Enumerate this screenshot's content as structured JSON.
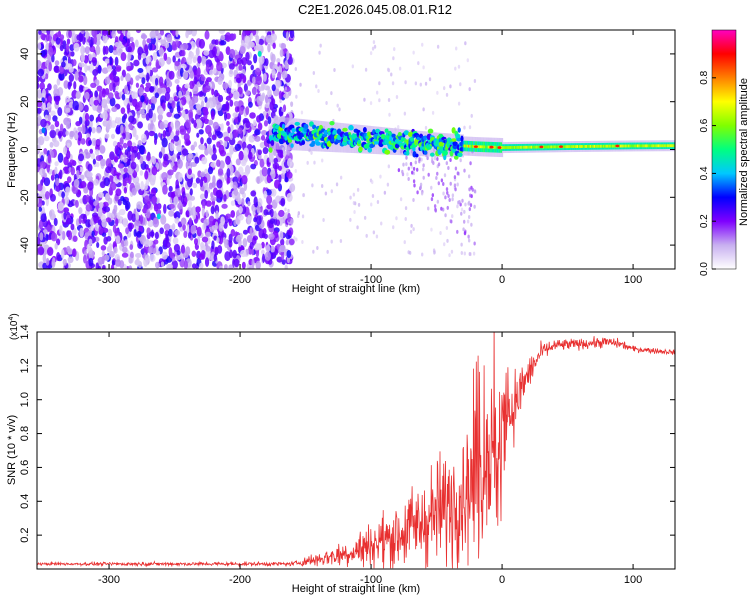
{
  "title": "C2E1.2026.045.08.01.R12",
  "chart_data": [
    {
      "type": "heatmap",
      "xlabel": "Height of straight line (km)",
      "ylabel": "Frequency (Hz)",
      "xlim": [
        -355,
        132
      ],
      "ylim": [
        -50,
        50
      ],
      "xticks": [
        -300,
        -200,
        -100,
        0,
        100
      ],
      "xtick_labels": [
        "-300",
        "-200",
        "-100",
        "0",
        "100"
      ],
      "yticks": [
        -40,
        -20,
        0,
        20,
        40
      ],
      "ytick_labels": [
        "-40",
        "-20",
        "0",
        "20",
        "40"
      ],
      "colorbar": {
        "label": "Normalized spectral amplitude",
        "range": [
          0,
          1
        ],
        "ticks": [
          0.0,
          0.2,
          0.4,
          0.6,
          0.8
        ],
        "tick_labels": [
          "0.0",
          "0.2",
          "0.4",
          "0.6",
          "0.8"
        ],
        "stops": [
          "#ffffff",
          "#c8b0f0",
          "#7f00ff",
          "#0000ff",
          "#00c8ff",
          "#00ff80",
          "#80ff00",
          "#ffff00",
          "#ff8000",
          "#ff0000",
          "#ff00c0"
        ]
      },
      "trace": {
        "x": [
          -175,
          -150,
          -125,
          -100,
          -75,
          -50,
          -30,
          -20,
          0,
          50,
          100,
          132
        ],
        "freq_hz": [
          7,
          6,
          5,
          4,
          3,
          2,
          1.5,
          1.2,
          0.8,
          1.2,
          1.5,
          1.6
        ]
      }
    },
    {
      "type": "line",
      "xlabel": "Height of straight line (km)",
      "ylabel": "SNR (10 * v/v)",
      "y_multiplier_label": "(x10",
      "y_multiplier_exp": "4",
      "xlim": [
        -355,
        132
      ],
      "ylim": [
        0,
        14000
      ],
      "xticks": [
        -300,
        -200,
        -100,
        0,
        100
      ],
      "xtick_labels": [
        "-300",
        "-200",
        "-100",
        "0",
        "100"
      ],
      "yticks": [
        2000,
        4000,
        6000,
        8000,
        10000,
        12000,
        14000
      ],
      "ytick_labels": [
        "0.2",
        "0.4",
        "0.6",
        "0.8",
        "1.0",
        "1.2",
        "1.4"
      ],
      "line_color": "#e83030",
      "series_envelope": {
        "x": [
          -355,
          -160,
          -140,
          -120,
          -100,
          -80,
          -60,
          -40,
          -30,
          -20,
          -15,
          -10,
          0,
          10,
          20,
          30,
          40,
          60,
          80,
          90,
          100,
          132
        ],
        "mean": [
          300,
          300,
          600,
          900,
          1400,
          2000,
          2800,
          3800,
          4700,
          5500,
          6200,
          7000,
          8300,
          9800,
          11500,
          12800,
          13200,
          13300,
          13400,
          13300,
          13000,
          12800
        ],
        "noise": [
          60,
          80,
          300,
          500,
          900,
          1300,
          1800,
          2300,
          2700,
          3000,
          3200,
          3000,
          2200,
          1300,
          700,
          350,
          250,
          200,
          220,
          180,
          120,
          100
        ]
      }
    }
  ]
}
